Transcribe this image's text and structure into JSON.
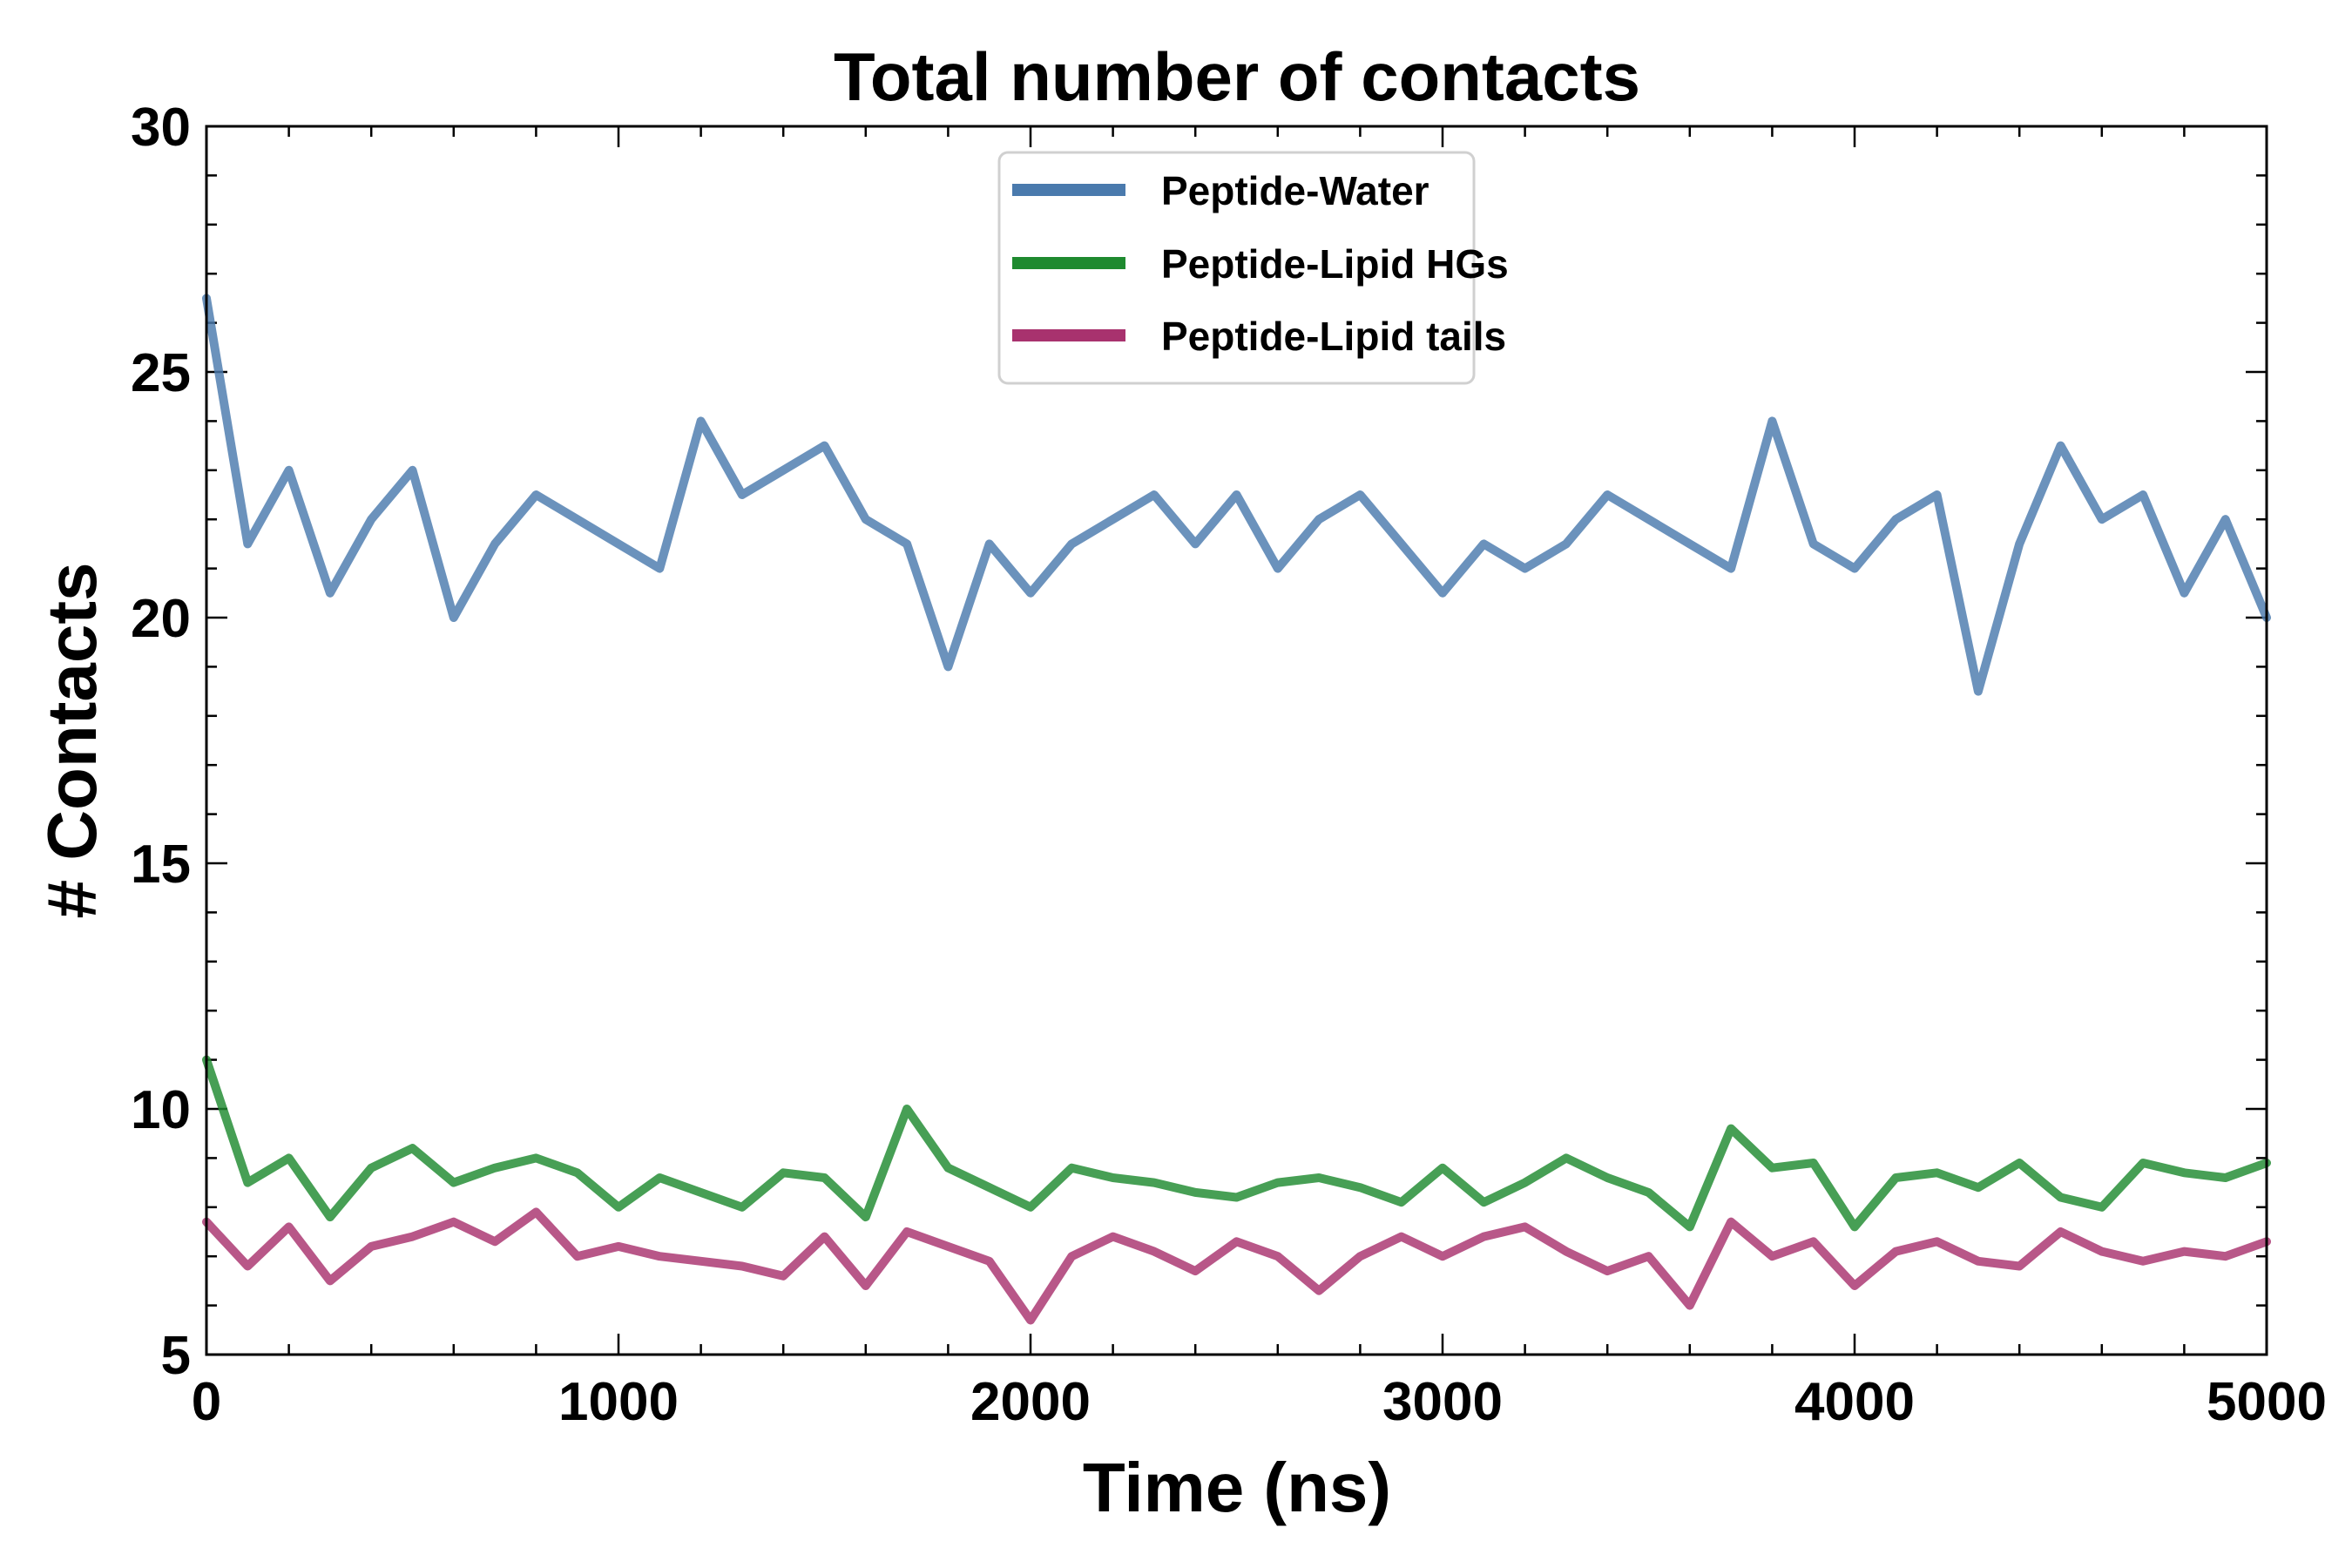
{
  "chart_data": {
    "type": "line",
    "title": "Total number of contacts",
    "xlabel": "Time (ns)",
    "ylabel": "# Contacts",
    "xlim": [
      0,
      5000
    ],
    "ylim": [
      5,
      30
    ],
    "xticks": [
      0,
      1000,
      2000,
      3000,
      4000,
      5000
    ],
    "yticks": [
      5,
      10,
      15,
      20,
      25,
      30
    ],
    "legend_position": "upper-center",
    "series": [
      {
        "name": "Peptide-Water",
        "color": "#4a7aad",
        "x": [
          0,
          100,
          200,
          300,
          400,
          500,
          600,
          700,
          800,
          900,
          1000,
          1100,
          1200,
          1300,
          1400,
          1500,
          1600,
          1700,
          1800,
          1900,
          2000,
          2100,
          2200,
          2300,
          2400,
          2500,
          2600,
          2700,
          2800,
          2900,
          3000,
          3100,
          3200,
          3300,
          3400,
          3500,
          3600,
          3700,
          3800,
          3900,
          4000,
          4100,
          4200,
          4300,
          4400,
          4500,
          4600,
          4700,
          4800,
          4900,
          5000
        ],
        "values": [
          26.5,
          21.5,
          23.0,
          20.5,
          22.0,
          23.0,
          20.0,
          21.5,
          22.5,
          22.0,
          21.5,
          21.0,
          24.0,
          22.5,
          23.0,
          23.5,
          22.0,
          21.5,
          19.0,
          21.5,
          20.5,
          21.5,
          22.0,
          22.5,
          21.5,
          22.5,
          21.0,
          22.0,
          22.5,
          21.5,
          20.5,
          21.5,
          21.0,
          21.5,
          22.5,
          22.0,
          21.5,
          21.0,
          24.0,
          21.5,
          21.0,
          22.0,
          22.5,
          18.5,
          21.5,
          23.5,
          22.0,
          22.5,
          20.5,
          22.0,
          20.0
        ]
      },
      {
        "name": "Peptide-Lipid HGs",
        "color": "#1e8a2f",
        "x": [
          0,
          100,
          200,
          300,
          400,
          500,
          600,
          700,
          800,
          900,
          1000,
          1100,
          1200,
          1300,
          1400,
          1500,
          1600,
          1700,
          1800,
          1900,
          2000,
          2100,
          2200,
          2300,
          2400,
          2500,
          2600,
          2700,
          2800,
          2900,
          3000,
          3100,
          3200,
          3300,
          3400,
          3500,
          3600,
          3700,
          3800,
          3900,
          4000,
          4100,
          4200,
          4300,
          4400,
          4500,
          4600,
          4700,
          4800,
          4900,
          5000
        ],
        "values": [
          11.0,
          8.5,
          9.0,
          7.8,
          8.8,
          9.2,
          8.5,
          8.8,
          9.0,
          8.7,
          8.0,
          8.6,
          8.3,
          8.0,
          8.7,
          8.6,
          7.8,
          10.0,
          8.8,
          8.4,
          8.0,
          8.8,
          8.6,
          8.5,
          8.3,
          8.2,
          8.5,
          8.6,
          8.4,
          8.1,
          8.8,
          8.1,
          8.5,
          9.0,
          8.6,
          8.3,
          7.6,
          9.6,
          8.8,
          8.9,
          7.6,
          8.6,
          8.7,
          8.4,
          8.9,
          8.2,
          8.0,
          8.9,
          8.7,
          8.6,
          8.9
        ]
      },
      {
        "name": "Peptide-Lipid tails",
        "color": "#a8326e",
        "x": [
          0,
          100,
          200,
          300,
          400,
          500,
          600,
          700,
          800,
          900,
          1000,
          1100,
          1200,
          1300,
          1400,
          1500,
          1600,
          1700,
          1800,
          1900,
          2000,
          2100,
          2200,
          2300,
          2400,
          2500,
          2600,
          2700,
          2800,
          2900,
          3000,
          3100,
          3200,
          3300,
          3400,
          3500,
          3600,
          3700,
          3800,
          3900,
          4000,
          4100,
          4200,
          4300,
          4400,
          4500,
          4600,
          4700,
          4800,
          4900,
          5000
        ],
        "values": [
          7.7,
          6.8,
          7.6,
          6.5,
          7.2,
          7.4,
          7.7,
          7.3,
          7.9,
          7.0,
          7.2,
          7.0,
          6.9,
          6.8,
          6.6,
          7.4,
          6.4,
          7.5,
          7.2,
          6.9,
          5.7,
          7.0,
          7.4,
          7.1,
          6.7,
          7.3,
          7.0,
          6.3,
          7.0,
          7.4,
          7.0,
          7.4,
          7.6,
          7.1,
          6.7,
          7.0,
          6.0,
          7.7,
          7.0,
          7.3,
          6.4,
          7.1,
          7.3,
          6.9,
          6.8,
          7.5,
          7.1,
          6.9,
          7.1,
          7.0,
          7.3
        ]
      }
    ]
  }
}
